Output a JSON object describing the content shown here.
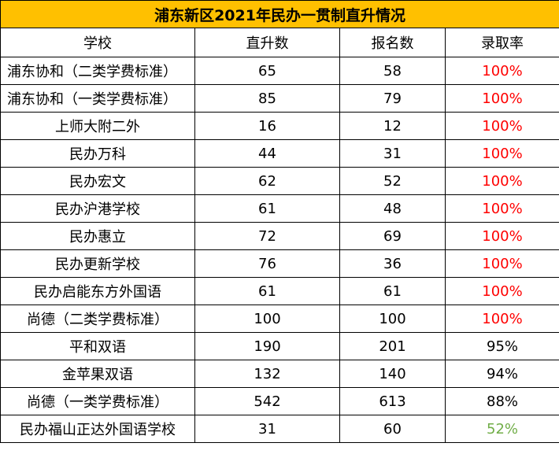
{
  "title": "浦东新区2021年民办一贯制直升情况",
  "headers": [
    "学校",
    "直升数",
    "报名数",
    "录取率"
  ],
  "rows": [
    {
      "school": "浦东协和（二类学费标准）",
      "direct": "65",
      "applied": "58",
      "rate": "100%",
      "rate_color": "#ff0000",
      "align": "left"
    },
    {
      "school": "浦东协和（一类学费标准）",
      "direct": "85",
      "applied": "79",
      "rate": "100%",
      "rate_color": "#ff0000",
      "align": "left"
    },
    {
      "school": "上师大附二外",
      "direct": "16",
      "applied": "12",
      "rate": "100%",
      "rate_color": "#ff0000",
      "align": "center"
    },
    {
      "school": "民办万科",
      "direct": "44",
      "applied": "31",
      "rate": "100%",
      "rate_color": "#ff0000",
      "align": "center"
    },
    {
      "school": "民办宏文",
      "direct": "62",
      "applied": "52",
      "rate": "100%",
      "rate_color": "#ff0000",
      "align": "center"
    },
    {
      "school": "民办沪港学校",
      "direct": "61",
      "applied": "48",
      "rate": "100%",
      "rate_color": "#ff0000",
      "align": "center"
    },
    {
      "school": "民办惠立",
      "direct": "72",
      "applied": "69",
      "rate": "100%",
      "rate_color": "#ff0000",
      "align": "center"
    },
    {
      "school": "民办更新学校",
      "direct": "76",
      "applied": "36",
      "rate": "100%",
      "rate_color": "#ff0000",
      "align": "center"
    },
    {
      "school": "民办启能东方外国语",
      "direct": "61",
      "applied": "61",
      "rate": "100%",
      "rate_color": "#ff0000",
      "align": "center"
    },
    {
      "school": "尚德（二类学费标准）",
      "direct": "100",
      "applied": "100",
      "rate": "100%",
      "rate_color": "#ff0000",
      "align": "center"
    },
    {
      "school": "平和双语",
      "direct": "190",
      "applied": "201",
      "rate": "95%",
      "rate_color": "#000000",
      "align": "center"
    },
    {
      "school": "金苹果双语",
      "direct": "132",
      "applied": "140",
      "rate": "94%",
      "rate_color": "#000000",
      "align": "center"
    },
    {
      "school": "尚德（一类学费标准）",
      "direct": "542",
      "applied": "613",
      "rate": "88%",
      "rate_color": "#000000",
      "align": "center"
    },
    {
      "school": "民办福山正达外国语学校",
      "direct": "31",
      "applied": "60",
      "rate": "52%",
      "rate_color": "#70ad47",
      "align": "center"
    }
  ]
}
